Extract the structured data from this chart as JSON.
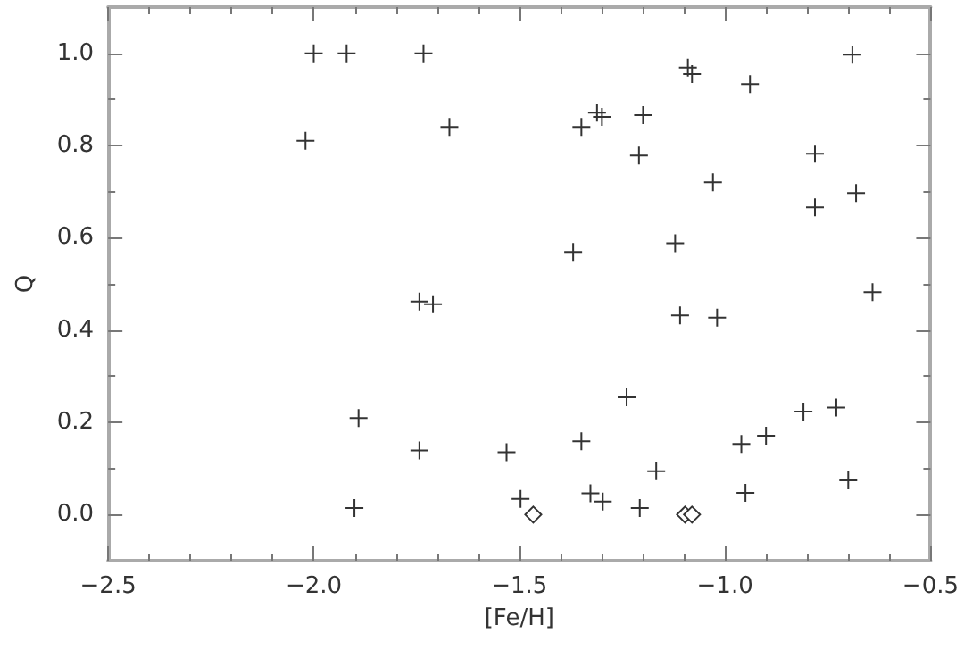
{
  "chart_data": {
    "type": "scatter",
    "xlabel": "[Fe/H]",
    "ylabel": "Q",
    "xlim": [
      -2.5,
      -0.5
    ],
    "ylim": [
      -0.1,
      1.1
    ],
    "xticks": [
      {
        "value": -2.5,
        "label": "−2.5"
      },
      {
        "value": -2.0,
        "label": "−2.0"
      },
      {
        "value": -1.5,
        "label": "−1.5"
      },
      {
        "value": -1.0,
        "label": "−1.0"
      },
      {
        "value": -0.5,
        "label": "−0.5"
      }
    ],
    "yticks": [
      {
        "value": 0,
        "label": "0.0"
      },
      {
        "value": 0.2,
        "label": "0.2"
      },
      {
        "value": 0.4,
        "label": "0.4"
      },
      {
        "value": 0.6,
        "label": "0.6"
      },
      {
        "value": 0.8,
        "label": "0.8"
      },
      {
        "value": 1.0,
        "label": "1.0"
      }
    ],
    "series": [
      {
        "color": "#333333",
        "marker": "cross",
        "x": [
          -2.0,
          -1.92,
          -1.733,
          -2.02,
          -1.67,
          -1.743,
          -1.71,
          -0.69,
          -1.09,
          -1.08,
          -0.939,
          -1.311,
          -1.299,
          -1.199,
          -1.349,
          -1.209,
          -0.781,
          -1.029,
          -0.681,
          -0.781,
          -1.369,
          -1.121,
          -0.641,
          -1.891,
          -1.901,
          -1.743,
          -1.531,
          -1.497,
          -1.109,
          -1.019,
          -1.239,
          -0.809,
          -0.729,
          -1.349,
          -0.96,
          -0.9,
          -1.167,
          -1.327,
          -1.297,
          -1.207,
          -0.95,
          -0.7
        ],
        "values": [
          1.0,
          1.0,
          1.0,
          0.81,
          0.84,
          0.462,
          0.456,
          0.997,
          0.969,
          0.955,
          0.933,
          0.871,
          0.862,
          0.866,
          0.84,
          0.778,
          0.782,
          0.72,
          0.697,
          0.666,
          0.569,
          0.588,
          0.482,
          0.209,
          0.014,
          0.139,
          0.135,
          0.034,
          0.432,
          0.427,
          0.254,
          0.223,
          0.232,
          0.159,
          0.153,
          0.171,
          0.094,
          0.046,
          0.028,
          0.014,
          0.047,
          0.074
        ]
      },
      {
        "color": "#333333",
        "marker": "diamond",
        "x": [
          -1.466,
          -1.097,
          -1.08
        ],
        "values": [
          0.0,
          0.0,
          0.0
        ]
      }
    ]
  }
}
